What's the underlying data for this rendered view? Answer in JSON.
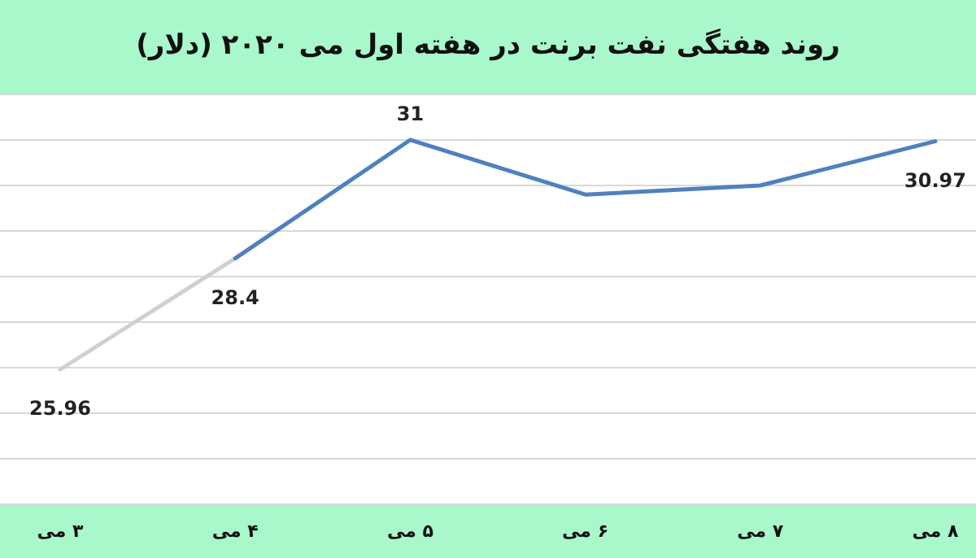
{
  "chart_data": {
    "type": "line",
    "title": "روند هفتگی نفت برنت در هفته اول می ۲۰۲۰ (دلار)",
    "categories": [
      "۳ می",
      "۴ می",
      "۵ می",
      "۶ می",
      "۷ می",
      "۸ می"
    ],
    "series": [
      {
        "color": "#d0d0d0",
        "values": [
          25.96,
          28.4,
          null,
          null,
          null,
          null
        ],
        "value_labels": [
          "25.96",
          null,
          null,
          null,
          null,
          null
        ]
      },
      {
        "color": "#4f81bd",
        "values": [
          null,
          28.4,
          31,
          29.8,
          30.0,
          30.97
        ],
        "value_labels": [
          null,
          "28.4",
          "31",
          null,
          null,
          "30.97"
        ]
      }
    ],
    "ylim": [
      23,
      32
    ],
    "yticks": [
      {
        "value": 23,
        "label": null
      },
      {
        "value": 24,
        "label": null
      },
      {
        "value": 25,
        "label": null
      },
      {
        "value": 26,
        "label": null
      },
      {
        "value": 27,
        "label": null
      },
      {
        "value": 28,
        "label": null
      },
      {
        "value": 29,
        "label": null
      },
      {
        "value": 30,
        "label": null
      },
      {
        "value": 31,
        "label": null
      },
      {
        "value": 32,
        "label": null
      }
    ],
    "grid": "y",
    "tick_labels": "x",
    "marker": "none",
    "line_style": "solid"
  }
}
